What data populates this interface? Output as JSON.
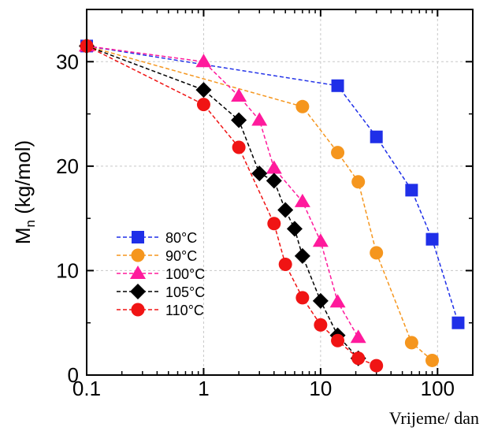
{
  "chart_data": {
    "type": "scatter",
    "xlabel": "Vrijeme/ dan",
    "ylabel": "M",
    "ylabel_sub": "n",
    "ylabel_unit": " (kg/mol)",
    "xscale": "log",
    "xlim": [
      0.1,
      200
    ],
    "ylim": [
      0,
      35
    ],
    "xticks": [
      0.1,
      1,
      10,
      100
    ],
    "xtick_labels": [
      "0.1",
      "1",
      "10",
      "100"
    ],
    "yticks": [
      0,
      10,
      20,
      30
    ],
    "ytick_labels": [
      "0",
      "10",
      "20",
      "30"
    ],
    "grid": true,
    "legend_position": "bottom-left",
    "series": [
      {
        "name": "80°C",
        "color": "#1f2fe8",
        "marker": "square",
        "x": [
          0.1,
          14,
          30,
          60,
          90,
          150
        ],
        "y": [
          31.5,
          27.7,
          22.8,
          17.7,
          13.0,
          5.0
        ]
      },
      {
        "name": "90°C",
        "color": "#f5961e",
        "marker": "circle",
        "x": [
          0.1,
          7,
          14,
          21,
          30,
          60,
          90
        ],
        "y": [
          31.5,
          25.7,
          21.3,
          18.5,
          11.7,
          3.1,
          1.4
        ]
      },
      {
        "name": "100°C",
        "color": "#ff1a9c",
        "marker": "triangle",
        "x": [
          0.1,
          1,
          2,
          3,
          4,
          7,
          10,
          14,
          21
        ],
        "y": [
          31.5,
          30.0,
          26.7,
          24.4,
          19.8,
          16.6,
          12.8,
          7.0,
          3.6
        ]
      },
      {
        "name": "105°C",
        "color": "#000000",
        "marker": "diamond",
        "x": [
          0.1,
          1,
          2,
          3,
          4,
          5,
          6,
          7,
          10,
          14,
          21
        ],
        "y": [
          31.5,
          27.3,
          24.4,
          19.3,
          18.6,
          15.8,
          14.0,
          11.4,
          7.1,
          3.8,
          1.6
        ]
      },
      {
        "name": "110°C",
        "color": "#f01414",
        "marker": "circle",
        "x": [
          0.1,
          1,
          2,
          4,
          5,
          7,
          10,
          14,
          21,
          30
        ],
        "y": [
          31.5,
          25.9,
          21.8,
          14.5,
          10.6,
          7.4,
          4.8,
          3.3,
          1.6,
          0.9
        ]
      }
    ]
  }
}
